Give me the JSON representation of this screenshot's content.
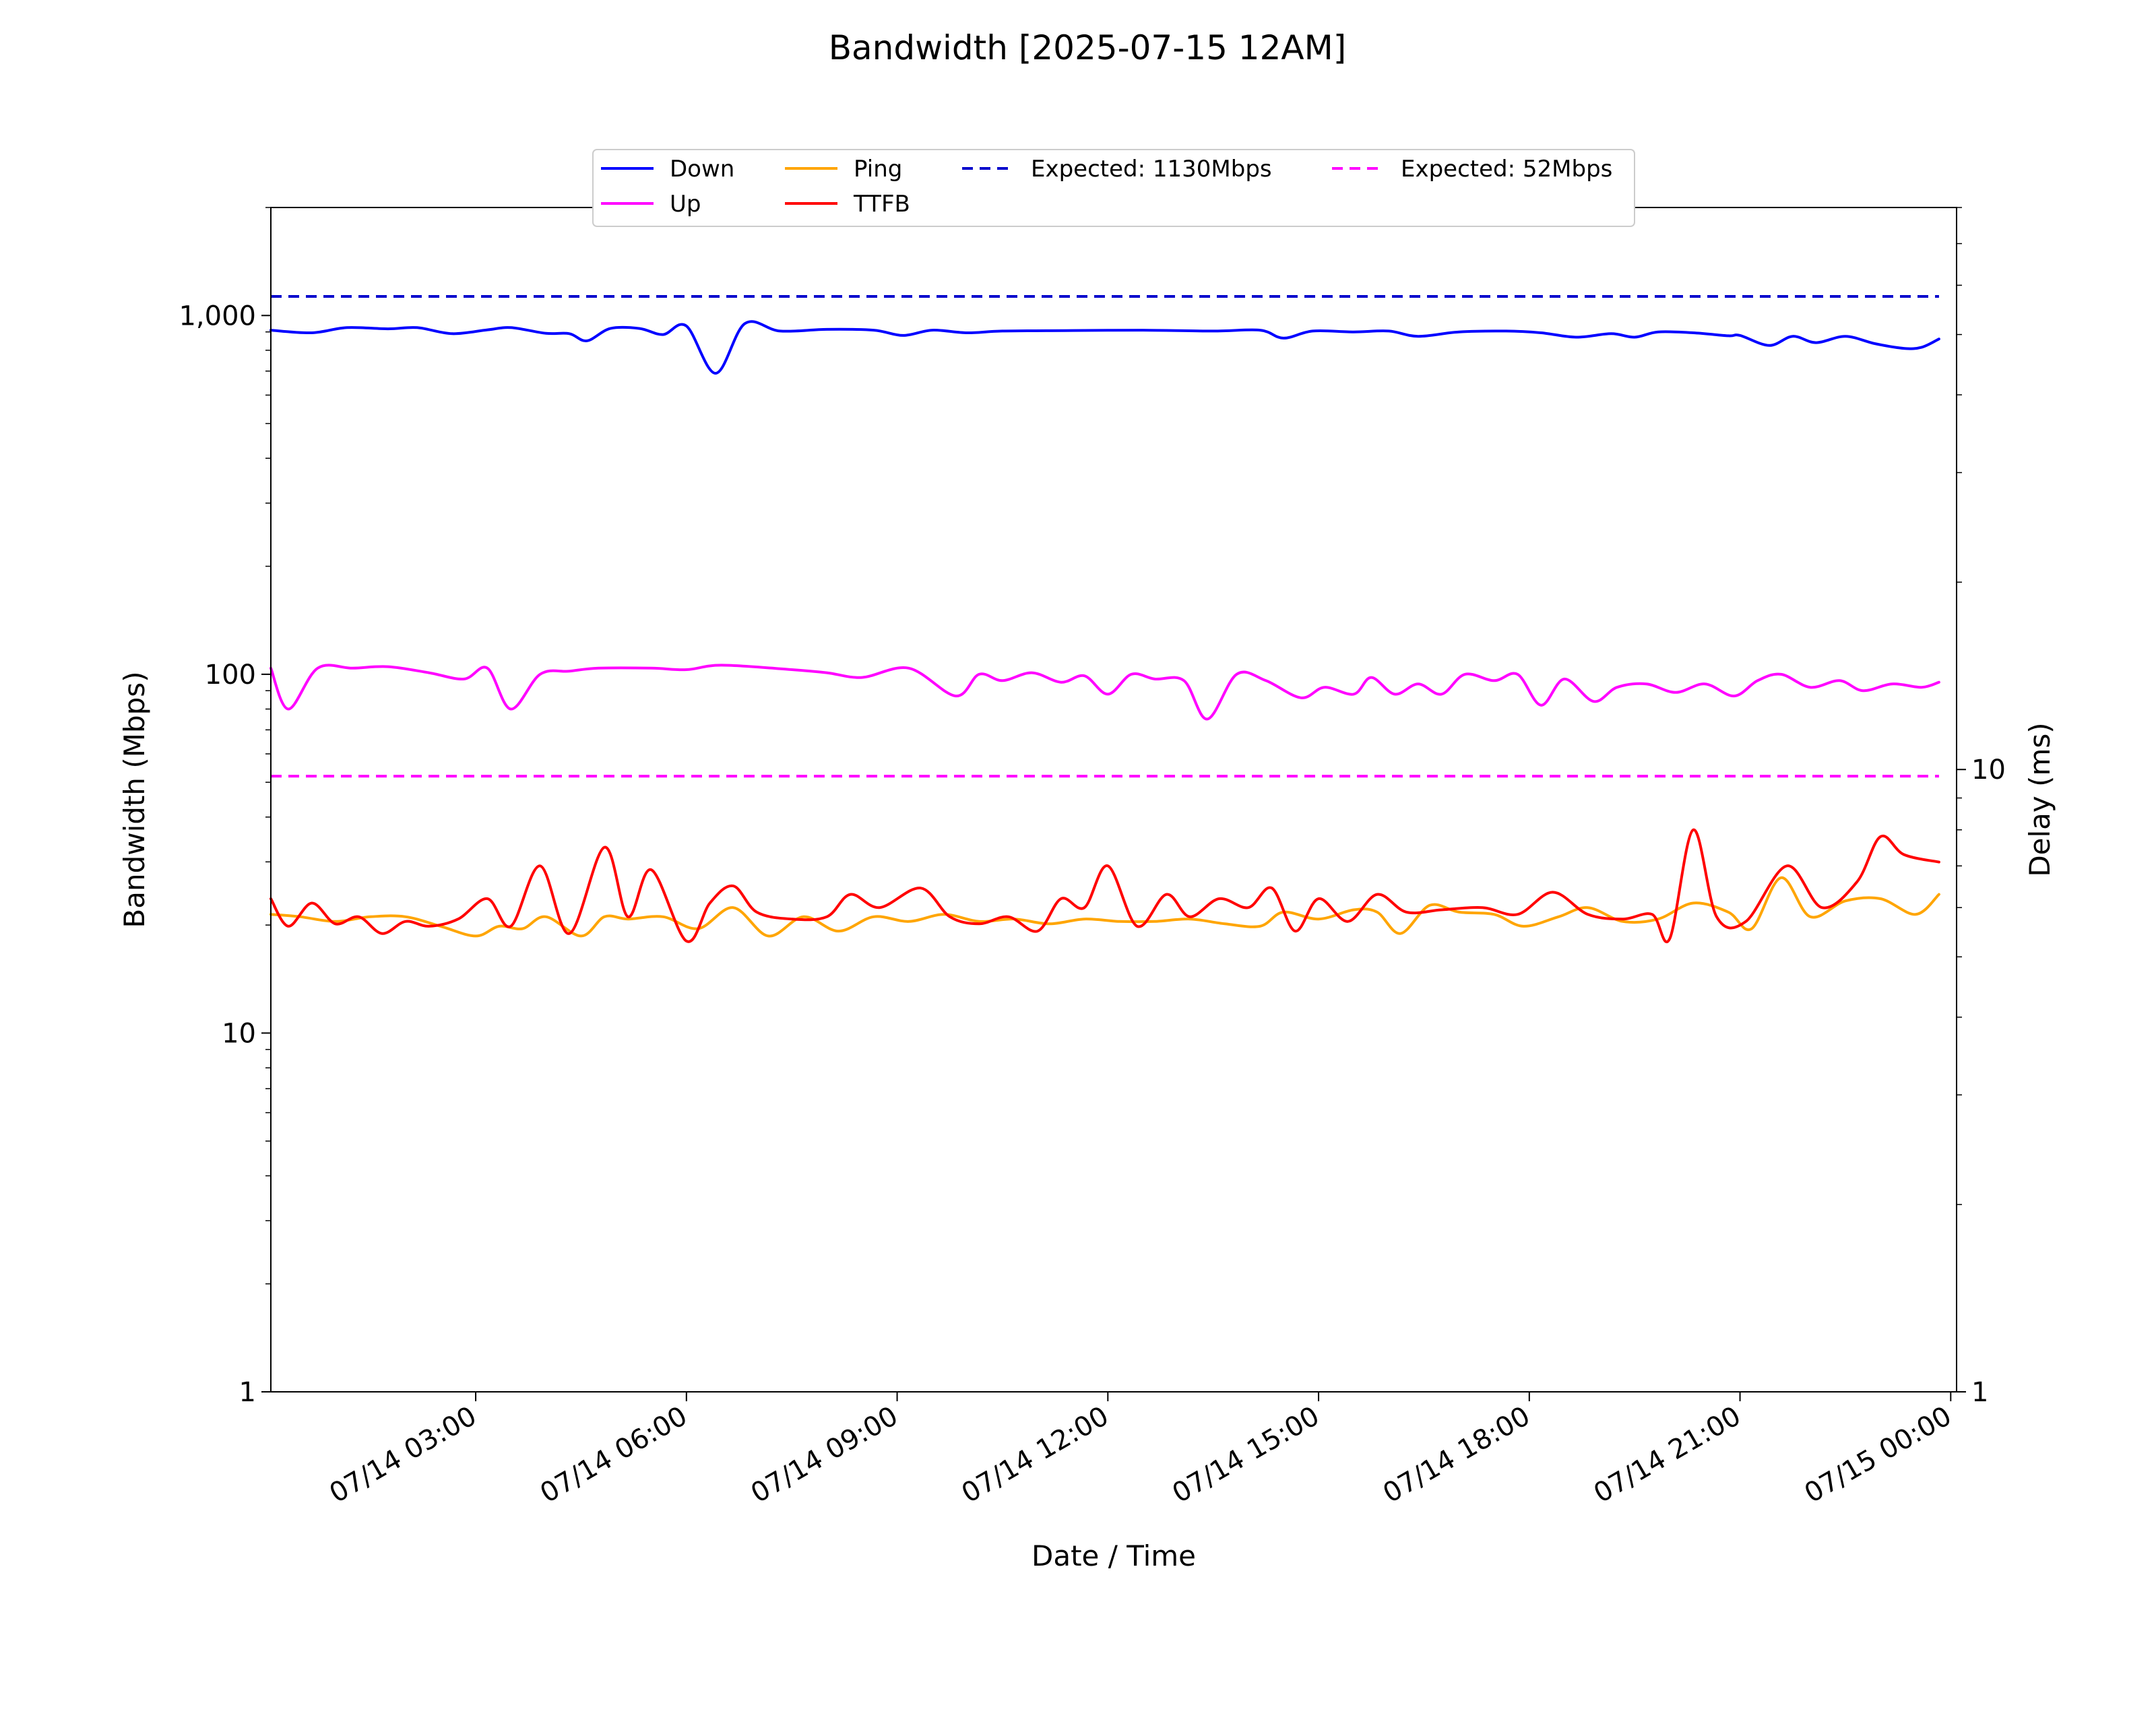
{
  "chart_data": {
    "type": "line",
    "title": "Bandwidth [2025-07-15 12AM]",
    "xlabel": "Date / Time",
    "ylabel": "Bandwidth (Mbps)",
    "ylabel_right": "Delay (ms)",
    "yscale": "log",
    "ylim": [
      1,
      2000
    ],
    "yticks": [
      {
        "value": 1,
        "label": "1"
      },
      {
        "value": 10,
        "label": "10"
      },
      {
        "value": 100,
        "label": "100"
      },
      {
        "value": 1000,
        "label": "1,000"
      }
    ],
    "yscale_right": "log",
    "ylim_right": [
      1,
      80
    ],
    "yticks_right": [
      {
        "value": 1,
        "label": "1"
      },
      {
        "value": 10,
        "label": "10"
      }
    ],
    "xlim": [
      "2025-07-14T00:05",
      "2025-07-15T00:05"
    ],
    "xticks": [
      {
        "value": "2025-07-14T03:00",
        "label": "07/14 03:00"
      },
      {
        "value": "2025-07-14T06:00",
        "label": "07/14 06:00"
      },
      {
        "value": "2025-07-14T09:00",
        "label": "07/14 09:00"
      },
      {
        "value": "2025-07-14T12:00",
        "label": "07/14 12:00"
      },
      {
        "value": "2025-07-14T15:00",
        "label": "07/14 15:00"
      },
      {
        "value": "2025-07-14T18:00",
        "label": "07/14 18:00"
      },
      {
        "value": "2025-07-14T21:00",
        "label": "07/14 21:00"
      },
      {
        "value": "2025-07-15T00:00",
        "label": "07/15 00:00"
      }
    ],
    "legend_position": "top-center",
    "grid": false,
    "series": [
      {
        "name": "Down",
        "axis": "left",
        "color": "#0000ff",
        "style": "solid",
        "points": [
          [
            "2025-07-14T00:05",
            910
          ],
          [
            "2025-07-14T00:40",
            895
          ],
          [
            "2025-07-14T01:10",
            925
          ],
          [
            "2025-07-14T01:45",
            918
          ],
          [
            "2025-07-14T02:10",
            925
          ],
          [
            "2025-07-14T02:40",
            890
          ],
          [
            "2025-07-14T03:10",
            912
          ],
          [
            "2025-07-14T03:30",
            925
          ],
          [
            "2025-07-14T04:00",
            892
          ],
          [
            "2025-07-14T04:20",
            890
          ],
          [
            "2025-07-14T04:35",
            850
          ],
          [
            "2025-07-14T04:55",
            920
          ],
          [
            "2025-07-14T05:20",
            920
          ],
          [
            "2025-07-14T05:40",
            885
          ],
          [
            "2025-07-14T06:00",
            935
          ],
          [
            "2025-07-14T06:25",
            690
          ],
          [
            "2025-07-14T06:50",
            950
          ],
          [
            "2025-07-14T07:20",
            905
          ],
          [
            "2025-07-14T08:00",
            915
          ],
          [
            "2025-07-14T08:40",
            910
          ],
          [
            "2025-07-14T09:05",
            880
          ],
          [
            "2025-07-14T09:30",
            910
          ],
          [
            "2025-07-14T10:00",
            895
          ],
          [
            "2025-07-14T10:30",
            905
          ],
          [
            "2025-07-14T11:30",
            908
          ],
          [
            "2025-07-14T12:30",
            910
          ],
          [
            "2025-07-14T13:30",
            905
          ],
          [
            "2025-07-14T14:10",
            910
          ],
          [
            "2025-07-14T14:30",
            865
          ],
          [
            "2025-07-14T14:55",
            905
          ],
          [
            "2025-07-14T15:30",
            900
          ],
          [
            "2025-07-14T16:00",
            905
          ],
          [
            "2025-07-14T16:25",
            875
          ],
          [
            "2025-07-14T17:00",
            900
          ],
          [
            "2025-07-14T17:40",
            905
          ],
          [
            "2025-07-14T18:10",
            895
          ],
          [
            "2025-07-14T18:40",
            870
          ],
          [
            "2025-07-14T19:10",
            890
          ],
          [
            "2025-07-14T19:30",
            870
          ],
          [
            "2025-07-14T19:50",
            900
          ],
          [
            "2025-07-14T20:20",
            895
          ],
          [
            "2025-07-14T20:50",
            878
          ],
          [
            "2025-07-14T21:00",
            880
          ],
          [
            "2025-07-14T21:25",
            825
          ],
          [
            "2025-07-14T21:45",
            875
          ],
          [
            "2025-07-14T22:05",
            840
          ],
          [
            "2025-07-14T22:30",
            875
          ],
          [
            "2025-07-14T22:55",
            835
          ],
          [
            "2025-07-14T23:20",
            810
          ],
          [
            "2025-07-14T23:35",
            815
          ],
          [
            "2025-07-14T23:50",
            860
          ]
        ]
      },
      {
        "name": "Up",
        "axis": "left",
        "color": "#ff00ff",
        "style": "solid",
        "points": [
          [
            "2025-07-14T00:05",
            104
          ],
          [
            "2025-07-14T00:20",
            80
          ],
          [
            "2025-07-14T00:45",
            104
          ],
          [
            "2025-07-14T01:15",
            104
          ],
          [
            "2025-07-14T01:45",
            105
          ],
          [
            "2025-07-14T02:20",
            101
          ],
          [
            "2025-07-14T02:50",
            97
          ],
          [
            "2025-07-14T03:10",
            104
          ],
          [
            "2025-07-14T03:30",
            80
          ],
          [
            "2025-07-14T03:55",
            100
          ],
          [
            "2025-07-14T04:20",
            102
          ],
          [
            "2025-07-14T04:45",
            104
          ],
          [
            "2025-07-14T05:30",
            104
          ],
          [
            "2025-07-14T06:00",
            103
          ],
          [
            "2025-07-14T06:30",
            106
          ],
          [
            "2025-07-14T07:30",
            103
          ],
          [
            "2025-07-14T08:00",
            101
          ],
          [
            "2025-07-14T08:30",
            98
          ],
          [
            "2025-07-14T09:10",
            104
          ],
          [
            "2025-07-14T09:50",
            87
          ],
          [
            "2025-07-14T10:10",
            100
          ],
          [
            "2025-07-14T10:30",
            96
          ],
          [
            "2025-07-14T10:55",
            101
          ],
          [
            "2025-07-14T11:20",
            95
          ],
          [
            "2025-07-14T11:40",
            99
          ],
          [
            "2025-07-14T12:00",
            88
          ],
          [
            "2025-07-14T12:20",
            100
          ],
          [
            "2025-07-14T12:40",
            97
          ],
          [
            "2025-07-14T13:05",
            96
          ],
          [
            "2025-07-14T13:25",
            75
          ],
          [
            "2025-07-14T13:50",
            100
          ],
          [
            "2025-07-14T14:15",
            96
          ],
          [
            "2025-07-14T14:45",
            86
          ],
          [
            "2025-07-14T15:05",
            92
          ],
          [
            "2025-07-14T15:30",
            88
          ],
          [
            "2025-07-14T15:45",
            98
          ],
          [
            "2025-07-14T16:05",
            88
          ],
          [
            "2025-07-14T16:25",
            94
          ],
          [
            "2025-07-14T16:45",
            88
          ],
          [
            "2025-07-14T17:05",
            100
          ],
          [
            "2025-07-14T17:30",
            96
          ],
          [
            "2025-07-14T17:50",
            100
          ],
          [
            "2025-07-14T18:10",
            82
          ],
          [
            "2025-07-14T18:30",
            97
          ],
          [
            "2025-07-14T18:55",
            84
          ],
          [
            "2025-07-14T19:15",
            92
          ],
          [
            "2025-07-14T19:40",
            94
          ],
          [
            "2025-07-14T20:05",
            89
          ],
          [
            "2025-07-14T20:30",
            94
          ],
          [
            "2025-07-14T20:55",
            87
          ],
          [
            "2025-07-14T21:15",
            96
          ],
          [
            "2025-07-14T21:35",
            100
          ],
          [
            "2025-07-14T22:00",
            92
          ],
          [
            "2025-07-14T22:25",
            96
          ],
          [
            "2025-07-14T22:45",
            90
          ],
          [
            "2025-07-14T23:10",
            94
          ],
          [
            "2025-07-14T23:35",
            92
          ],
          [
            "2025-07-14T23:50",
            95
          ]
        ]
      },
      {
        "name": "Ping",
        "axis": "right",
        "color": "#ffa500",
        "style": "solid",
        "points": [
          [
            "2025-07-14T00:05",
            5.85
          ],
          [
            "2025-07-14T00:30",
            5.8
          ],
          [
            "2025-07-14T01:00",
            5.7
          ],
          [
            "2025-07-14T01:30",
            5.8
          ],
          [
            "2025-07-14T02:00",
            5.8
          ],
          [
            "2025-07-14T02:30",
            5.6
          ],
          [
            "2025-07-14T03:00",
            5.4
          ],
          [
            "2025-07-14T03:20",
            5.6
          ],
          [
            "2025-07-14T03:40",
            5.55
          ],
          [
            "2025-07-14T04:00",
            5.8
          ],
          [
            "2025-07-14T04:30",
            5.4
          ],
          [
            "2025-07-14T04:50",
            5.8
          ],
          [
            "2025-07-14T05:10",
            5.75
          ],
          [
            "2025-07-14T05:40",
            5.8
          ],
          [
            "2025-07-14T06:10",
            5.55
          ],
          [
            "2025-07-14T06:40",
            6.0
          ],
          [
            "2025-07-14T07:10",
            5.4
          ],
          [
            "2025-07-14T07:40",
            5.8
          ],
          [
            "2025-07-14T08:10",
            5.5
          ],
          [
            "2025-07-14T08:40",
            5.8
          ],
          [
            "2025-07-14T09:10",
            5.7
          ],
          [
            "2025-07-14T09:40",
            5.85
          ],
          [
            "2025-07-14T10:10",
            5.7
          ],
          [
            "2025-07-14T10:40",
            5.75
          ],
          [
            "2025-07-14T11:10",
            5.65
          ],
          [
            "2025-07-14T11:40",
            5.75
          ],
          [
            "2025-07-14T12:10",
            5.7
          ],
          [
            "2025-07-14T12:40",
            5.7
          ],
          [
            "2025-07-14T13:10",
            5.75
          ],
          [
            "2025-07-14T13:40",
            5.65
          ],
          [
            "2025-07-14T14:10",
            5.6
          ],
          [
            "2025-07-14T14:30",
            5.9
          ],
          [
            "2025-07-14T15:00",
            5.75
          ],
          [
            "2025-07-14T15:30",
            5.95
          ],
          [
            "2025-07-14T15:50",
            5.9
          ],
          [
            "2025-07-14T16:10",
            5.45
          ],
          [
            "2025-07-14T16:35",
            6.05
          ],
          [
            "2025-07-14T17:00",
            5.9
          ],
          [
            "2025-07-14T17:30",
            5.85
          ],
          [
            "2025-07-14T17:55",
            5.6
          ],
          [
            "2025-07-14T18:25",
            5.8
          ],
          [
            "2025-07-14T18:50",
            6.0
          ],
          [
            "2025-07-14T19:20",
            5.7
          ],
          [
            "2025-07-14T19:50",
            5.75
          ],
          [
            "2025-07-14T20:20",
            6.1
          ],
          [
            "2025-07-14T20:50",
            5.9
          ],
          [
            "2025-07-14T21:10",
            5.55
          ],
          [
            "2025-07-14T21:35",
            6.7
          ],
          [
            "2025-07-14T22:00",
            5.8
          ],
          [
            "2025-07-14T22:30",
            6.15
          ],
          [
            "2025-07-14T23:00",
            6.2
          ],
          [
            "2025-07-14T23:30",
            5.85
          ],
          [
            "2025-07-14T23:50",
            6.3
          ]
        ]
      },
      {
        "name": "TTFB",
        "axis": "right",
        "color": "#ff0000",
        "style": "solid",
        "points": [
          [
            "2025-07-14T00:05",
            6.2
          ],
          [
            "2025-07-14T00:20",
            5.6
          ],
          [
            "2025-07-14T00:40",
            6.1
          ],
          [
            "2025-07-14T01:00",
            5.65
          ],
          [
            "2025-07-14T01:20",
            5.8
          ],
          [
            "2025-07-14T01:40",
            5.45
          ],
          [
            "2025-07-14T02:00",
            5.7
          ],
          [
            "2025-07-14T02:20",
            5.6
          ],
          [
            "2025-07-14T02:45",
            5.75
          ],
          [
            "2025-07-14T03:10",
            6.2
          ],
          [
            "2025-07-14T03:30",
            5.6
          ],
          [
            "2025-07-14T03:55",
            7.0
          ],
          [
            "2025-07-14T04:20",
            5.45
          ],
          [
            "2025-07-14T04:50",
            7.5
          ],
          [
            "2025-07-14T05:10",
            5.8
          ],
          [
            "2025-07-14T05:30",
            6.9
          ],
          [
            "2025-07-14T06:00",
            5.3
          ],
          [
            "2025-07-14T06:20",
            6.1
          ],
          [
            "2025-07-14T06:40",
            6.5
          ],
          [
            "2025-07-14T07:00",
            5.9
          ],
          [
            "2025-07-14T07:30",
            5.75
          ],
          [
            "2025-07-14T08:00",
            5.8
          ],
          [
            "2025-07-14T08:20",
            6.3
          ],
          [
            "2025-07-14T08:45",
            6.0
          ],
          [
            "2025-07-14T09:20",
            6.45
          ],
          [
            "2025-07-14T09:45",
            5.8
          ],
          [
            "2025-07-14T10:10",
            5.65
          ],
          [
            "2025-07-14T10:35",
            5.8
          ],
          [
            "2025-07-14T11:00",
            5.5
          ],
          [
            "2025-07-14T11:20",
            6.2
          ],
          [
            "2025-07-14T11:40",
            6.0
          ],
          [
            "2025-07-14T12:00",
            7.0
          ],
          [
            "2025-07-14T12:25",
            5.6
          ],
          [
            "2025-07-14T12:50",
            6.3
          ],
          [
            "2025-07-14T13:10",
            5.8
          ],
          [
            "2025-07-14T13:35",
            6.2
          ],
          [
            "2025-07-14T14:00",
            6.0
          ],
          [
            "2025-07-14T14:20",
            6.45
          ],
          [
            "2025-07-14T14:40",
            5.5
          ],
          [
            "2025-07-14T15:00",
            6.2
          ],
          [
            "2025-07-14T15:25",
            5.7
          ],
          [
            "2025-07-14T15:50",
            6.3
          ],
          [
            "2025-07-14T16:15",
            5.9
          ],
          [
            "2025-07-14T16:45",
            5.95
          ],
          [
            "2025-07-14T17:20",
            6.0
          ],
          [
            "2025-07-14T17:50",
            5.85
          ],
          [
            "2025-07-14T18:20",
            6.35
          ],
          [
            "2025-07-14T18:50",
            5.85
          ],
          [
            "2025-07-14T19:20",
            5.75
          ],
          [
            "2025-07-14T19:45",
            5.85
          ],
          [
            "2025-07-14T20:00",
            5.35
          ],
          [
            "2025-07-14T20:20",
            8.0
          ],
          [
            "2025-07-14T20:40",
            5.8
          ],
          [
            "2025-07-14T21:05",
            5.7
          ],
          [
            "2025-07-14T21:40",
            7.0
          ],
          [
            "2025-07-14T22:10",
            6.0
          ],
          [
            "2025-07-14T22:40",
            6.6
          ],
          [
            "2025-07-14T23:00",
            7.8
          ],
          [
            "2025-07-14T23:20",
            7.3
          ],
          [
            "2025-07-14T23:50",
            7.1
          ]
        ]
      },
      {
        "name": "Expected: 1130Mbps",
        "axis": "left",
        "color": "#0000cc",
        "style": "dashed",
        "constant": 1130
      },
      {
        "name": "Expected: 52Mbps",
        "axis": "left",
        "color": "#ff00ff",
        "style": "dashed",
        "constant": 52
      }
    ]
  }
}
